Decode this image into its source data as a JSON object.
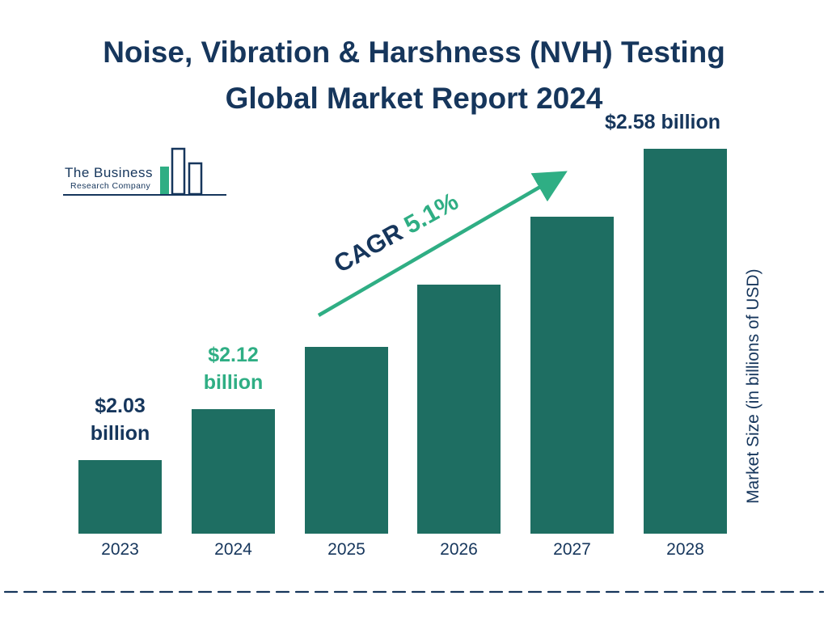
{
  "title": {
    "line1": "Noise, Vibration & Harshness (NVH) Testing",
    "line2": "Global Market Report 2024"
  },
  "logo": {
    "name": "The Business",
    "subname": "Research Company"
  },
  "cagr": {
    "label": "CAGR",
    "value": "5.1%",
    "label_color": "#16365c",
    "value_color": "#2fae84"
  },
  "y_axis_label": "Market Size (in billions of USD)",
  "colors": {
    "bar": "#1e6e62",
    "navy": "#16365c",
    "green_accent": "#2fae84"
  },
  "chart_data": {
    "type": "bar",
    "title": "Noise, Vibration & Harshness (NVH) Testing Global Market Report 2024",
    "categories": [
      "2023",
      "2024",
      "2025",
      "2026",
      "2027",
      "2028"
    ],
    "values": [
      2.03,
      2.12,
      2.23,
      2.34,
      2.46,
      2.58
    ],
    "unit": "USD billions",
    "xlabel": "",
    "ylabel": "Market Size (in billions of USD)",
    "ylim": [
      1.9,
      2.65
    ],
    "grid": false,
    "legend": "none",
    "bar_color": "#1e6e62",
    "cagr_percent": "5.1%",
    "annotations": [
      {
        "index": 0,
        "lines": [
          "$2.03",
          "billion"
        ],
        "color": "#16365c",
        "dx": 0
      },
      {
        "index": 1,
        "lines": [
          "$2.12",
          "billion"
        ],
        "color": "#2fae84",
        "dx": 0
      },
      {
        "index": 5,
        "lines": [
          "$2.58 billion"
        ],
        "color": "#16365c",
        "dx": -28
      }
    ]
  }
}
